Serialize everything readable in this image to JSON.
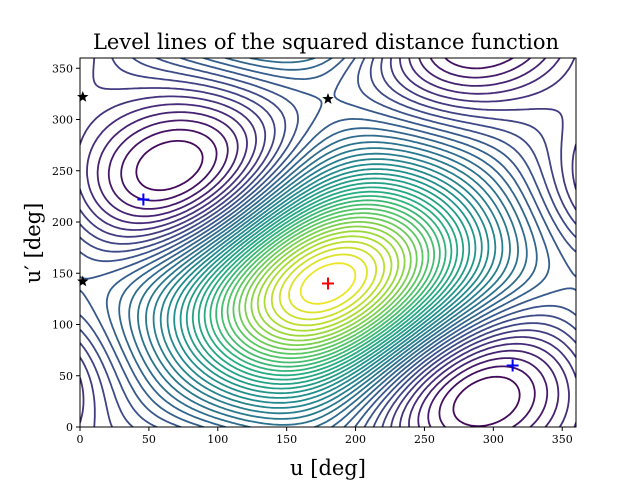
{
  "chart_data": {
    "type": "contour",
    "title": "Level lines of the squared distance function",
    "xlabel": "u [deg]",
    "ylabel": "u′ [deg]",
    "xlim": [
      0,
      360
    ],
    "ylim": [
      0,
      360
    ],
    "xticks": [
      0,
      50,
      100,
      150,
      200,
      250,
      300,
      350
    ],
    "yticks": [
      0,
      50,
      100,
      150,
      200,
      250,
      300,
      350
    ],
    "colormap": "viridis",
    "levels": 40,
    "grid": false,
    "markers": [
      {
        "name": "maximum",
        "symbol": "plus",
        "color": "#ff0000",
        "x": 180,
        "y": 140
      },
      {
        "name": "minimum",
        "symbol": "plus",
        "color": "#0000ff",
        "x": 46,
        "y": 222
      },
      {
        "name": "minimum",
        "symbol": "plus",
        "color": "#0000ff",
        "x": 314,
        "y": 60
      },
      {
        "name": "saddle",
        "symbol": "star",
        "color": "#000000",
        "x": 180,
        "y": 320
      },
      {
        "name": "saddle",
        "symbol": "star",
        "color": "#000000",
        "x": 2,
        "y": 322
      },
      {
        "name": "saddle",
        "symbol": "star",
        "color": "#000000",
        "x": 2,
        "y": 142
      }
    ]
  }
}
